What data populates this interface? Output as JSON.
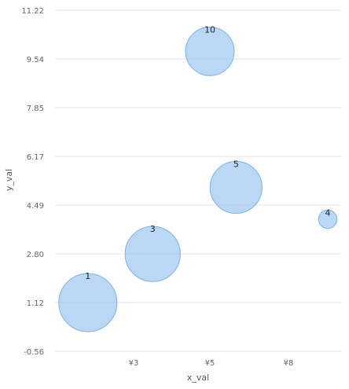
{
  "chart_data": {
    "type": "scatter",
    "subtype": "bubble",
    "xlabel": "x_val",
    "ylabel": "y_val",
    "x_ticks": [
      "¥3",
      "¥5",
      "¥8"
    ],
    "y_ticks": [
      "11.22",
      "9.54",
      "7.85",
      "6.17",
      "4.49",
      "2.80",
      "1.12",
      "-0.56"
    ],
    "ylim": [
      -0.56,
      11.22
    ],
    "grid": true,
    "points": [
      {
        "label": "1",
        "x": 1.8,
        "y": 1.12,
        "size": 10
      },
      {
        "label": "3",
        "x": 3.5,
        "y": 2.8,
        "size": 9
      },
      {
        "label": "10",
        "x": 5.0,
        "y": 9.8,
        "size": 7
      },
      {
        "label": "5",
        "x": 6.0,
        "y": 5.1,
        "size": 8
      },
      {
        "label": "4",
        "x": 9.5,
        "y": 4.0,
        "size": 1
      }
    ],
    "bubble_color": "#90beed",
    "bubble_stroke": "#7fb2e5"
  }
}
